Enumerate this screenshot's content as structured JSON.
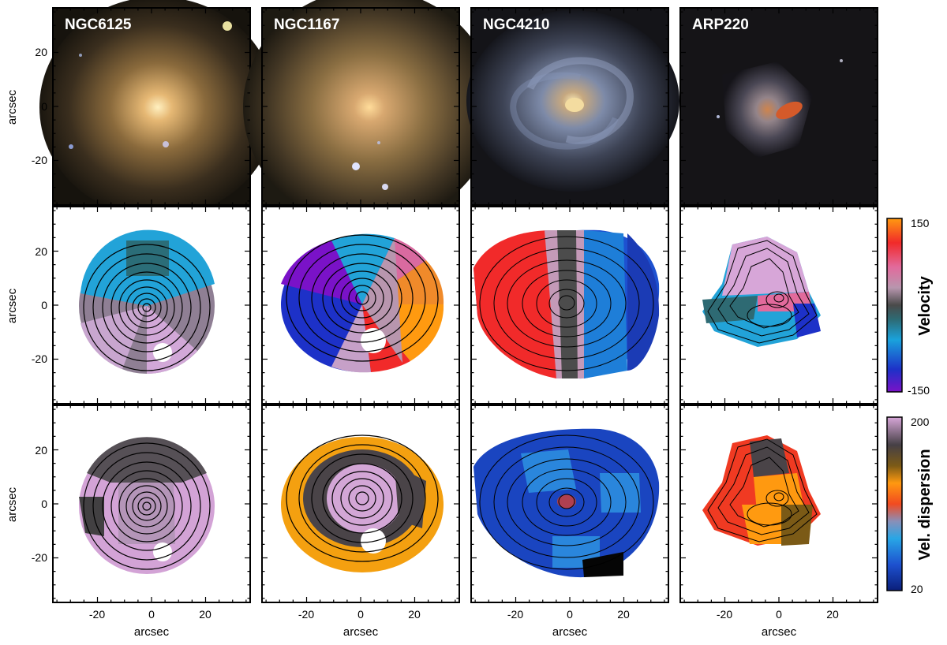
{
  "galaxies": [
    "NGC6125",
    "NGC1167",
    "NGC4210",
    "ARP220"
  ],
  "axes": {
    "unit_label": "arcsec",
    "x_ticks": [
      "-20",
      "0",
      "20"
    ],
    "y_ticks": [
      "20",
      "0",
      "-20"
    ]
  },
  "colorbars": {
    "velocity": {
      "title": "Velocity",
      "max": "150",
      "min": "-150"
    },
    "dispersion": {
      "title": "Vel. dispersion",
      "max": "200",
      "min": "20"
    }
  },
  "colors": {
    "velocity_scale": [
      "#7a12c8",
      "#1d31c8",
      "#1aa2dc",
      "#2e6a73",
      "#4a4a4a",
      "#b896ae",
      "#e26a9c",
      "#f12a2a",
      "#ff9a10"
    ],
    "dispersion_scale": [
      "#0a1e7a",
      "#1d51cf",
      "#28a6e6",
      "#8a8fb8",
      "#f24a20",
      "#ff9910",
      "#7b5a16",
      "#464046",
      "#d7a6d8"
    ]
  }
}
